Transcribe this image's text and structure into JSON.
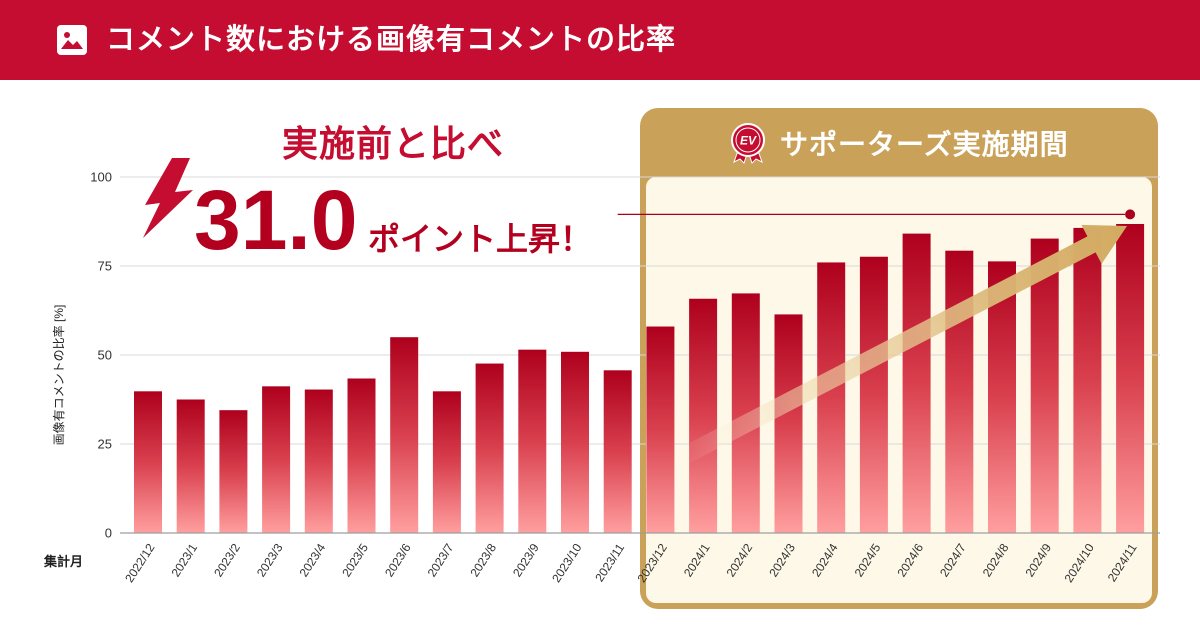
{
  "icons": {
    "title": "image-icon",
    "callout": "lightning-icon",
    "period": "ev-badge-icon",
    "trend": "trend-arrow"
  },
  "badge_text": "EV",
  "colors": {
    "brand": "#c40d30",
    "accent_dark": "#b3001f",
    "bar_top": "#ae001d",
    "bar_mid": "#d9404e",
    "bar_bottom": "#ff9f9f",
    "grid": "#d9d9d9",
    "axis": "#9e9e9e",
    "period_gold": "#c9a159",
    "period_bg": "#fdf8e7",
    "reference": "#a8001d",
    "arrow": "#d2aa60"
  },
  "chart_data": {
    "type": "bar",
    "title": "コメント数における画像有コメントの比率",
    "xlabel": "集計月",
    "ylabel": "画像有コメントの比率 [%]",
    "ylim": [
      0,
      100
    ],
    "yticks": [
      0,
      25,
      50,
      75,
      100
    ],
    "grid": true,
    "categories": [
      "2022/12",
      "2023/1",
      "2023/2",
      "2023/3",
      "2023/4",
      "2023/5",
      "2023/6",
      "2023/7",
      "2023/8",
      "2023/9",
      "2023/10",
      "2023/11",
      "2023/12",
      "2024/1",
      "2024/2",
      "2024/3",
      "2024/4",
      "2024/5",
      "2024/6",
      "2024/7",
      "2024/8",
      "2024/9",
      "2024/10",
      "2024/11"
    ],
    "values": [
      39.8,
      37.5,
      34.5,
      41.2,
      40.3,
      43.4,
      55.0,
      39.8,
      47.6,
      51.5,
      50.9,
      45.7,
      58.0,
      65.8,
      67.3,
      61.4,
      76.0,
      77.6,
      84.1,
      79.3,
      76.3,
      82.7,
      85.7,
      86.8
    ],
    "highlight_period": {
      "label": "サポーターズ実施期間"
    },
    "reference_line": {
      "value": 89.5
    },
    "annotation": {
      "lead": "実施前と比べ",
      "value": "31.0",
      "text": "ポイント上昇！"
    }
  }
}
